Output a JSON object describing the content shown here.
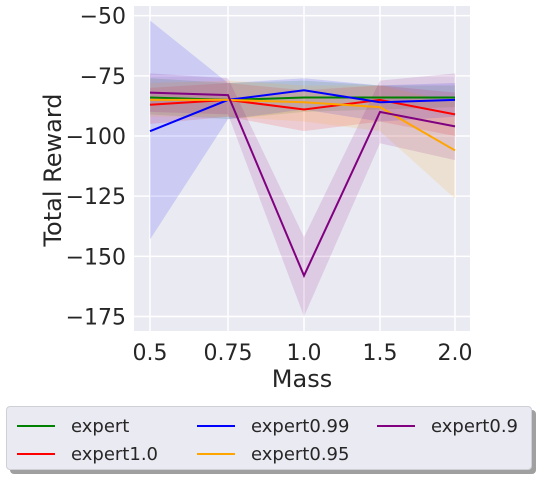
{
  "chart_data": {
    "type": "line",
    "title": "",
    "xlabel": "Mass",
    "ylabel": "Total Reward",
    "x": [
      0.5,
      0.75,
      1.0,
      1.5,
      2.0
    ],
    "xtick_labels": [
      "0.5",
      "0.75",
      "1.0",
      "1.5",
      "2.0"
    ],
    "yticks": [
      -50,
      -75,
      -100,
      -125,
      -150,
      -175
    ],
    "ytick_labels": [
      "−50",
      "−75",
      "−100",
      "−125",
      "−150",
      "−175"
    ],
    "ylim": [
      -181,
      -46
    ],
    "grid": true,
    "legend_position": "below",
    "series": [
      {
        "name": "expert",
        "color": "#008000",
        "values": [
          -84,
          -85,
          -84,
          -84,
          -84
        ],
        "lower": [
          -91,
          -93,
          -90,
          -89,
          -88
        ],
        "upper": [
          -76,
          -78,
          -77,
          -79,
          -79
        ]
      },
      {
        "name": "expert1.0",
        "color": "#ff0000",
        "values": [
          -87,
          -85,
          -89,
          -85,
          -91
        ],
        "lower": [
          -95,
          -92,
          -98,
          -94,
          -100
        ],
        "upper": [
          -80,
          -78,
          -81,
          -79,
          -82
        ]
      },
      {
        "name": "expert0.99",
        "color": "#0000ff",
        "values": [
          -98,
          -85,
          -81,
          -86,
          -85
        ],
        "lower": [
          -143,
          -93,
          -89,
          -94,
          -92
        ],
        "upper": [
          -52,
          -78,
          -76,
          -79,
          -78
        ]
      },
      {
        "name": "expert0.95",
        "color": "#ffa500",
        "values": [
          -85,
          -85,
          -86,
          -88,
          -106
        ],
        "lower": [
          -92,
          -92,
          -94,
          -98,
          -126
        ],
        "upper": [
          -78,
          -77,
          -79,
          -79,
          -86
        ]
      },
      {
        "name": "expert0.9",
        "color": "#800080",
        "values": [
          -82,
          -83,
          -158,
          -90,
          -96
        ],
        "lower": [
          -90,
          -91,
          -175,
          -103,
          -110
        ],
        "upper": [
          -74,
          -76,
          -142,
          -77,
          -74
        ]
      }
    ]
  }
}
